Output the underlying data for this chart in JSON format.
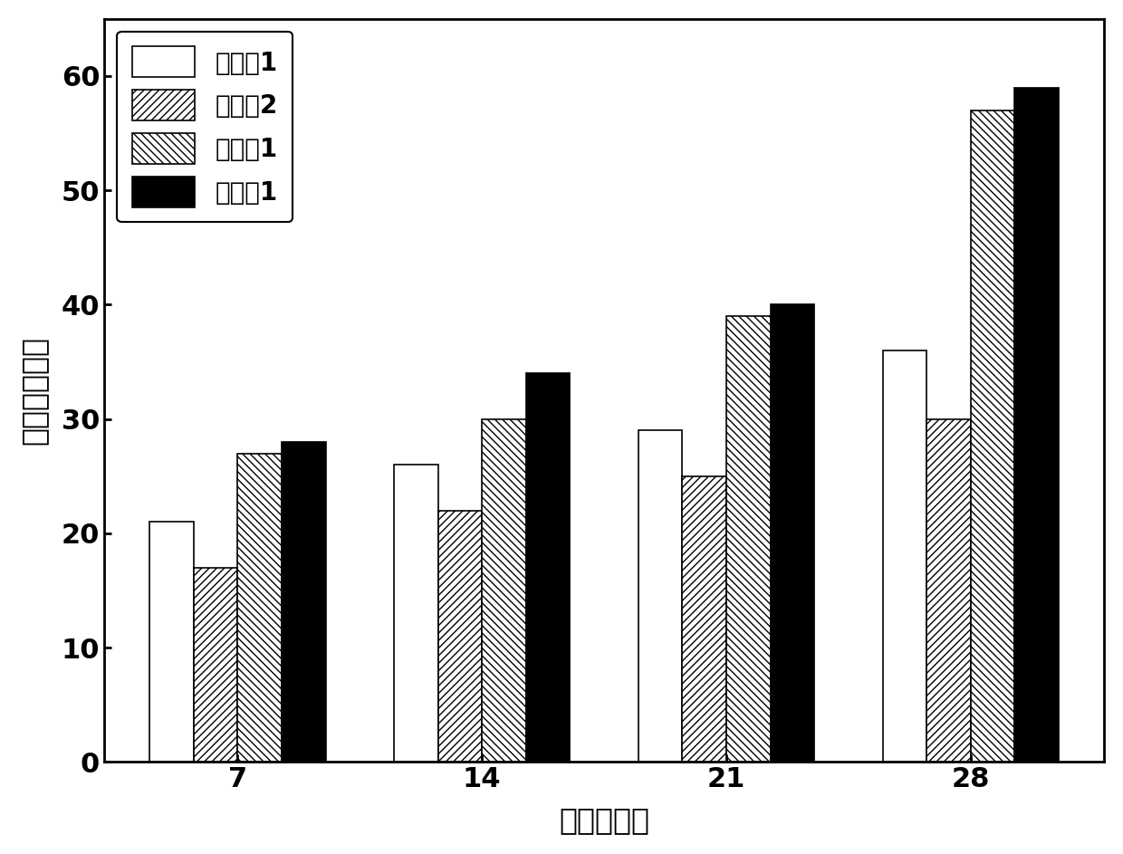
{
  "categories": [
    7,
    14,
    21,
    28
  ],
  "series": [
    {
      "label": "对比例1",
      "values": [
        21,
        26,
        29,
        36
      ],
      "facecolor": "white",
      "hatch": "",
      "edgecolor": "black"
    },
    {
      "label": "对比例2",
      "values": [
        17,
        22,
        25,
        30
      ],
      "facecolor": "white",
      "hatch": "////",
      "edgecolor": "black"
    },
    {
      "label": "实施例1",
      "values": [
        27,
        30,
        39,
        57
      ],
      "facecolor": "white",
      "hatch": "\\\\\\\\",
      "edgecolor": "black"
    },
    {
      "label": "实施例1",
      "values": [
        28,
        34,
        40,
        59
      ],
      "facecolor": "black",
      "hatch": "",
      "edgecolor": "black"
    }
  ],
  "xlabel": "时间（天）",
  "ylabel": "叶片数（个）",
  "ylim": [
    0,
    65
  ],
  "yticks": [
    0,
    10,
    20,
    30,
    40,
    50,
    60
  ],
  "bar_width": 0.18,
  "figsize": [
    12.4,
    9.43
  ],
  "dpi": 100,
  "label_font_size": 24,
  "legend_font_size": 20,
  "tick_font_size": 22
}
